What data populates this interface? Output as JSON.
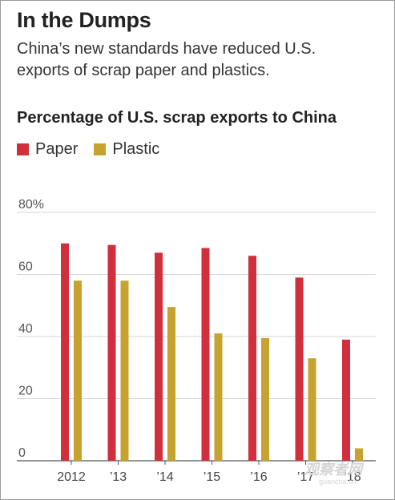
{
  "header": {
    "title": "In the Dumps",
    "subtitle": "China’s new standards have reduced U.S. exports of scrap paper and plastics."
  },
  "chart_data": {
    "type": "bar",
    "title": "Percentage of U.S. scrap exports to China",
    "categories": [
      "2012",
      "’13",
      "’14",
      "’15",
      "’16",
      "’17",
      "’18"
    ],
    "series": [
      {
        "name": "Paper",
        "color": "#d12f3b",
        "values": [
          70,
          69.5,
          67,
          68.5,
          66,
          59,
          39
        ]
      },
      {
        "name": "Plastic",
        "color": "#c6a32f",
        "values": [
          58,
          58,
          49.5,
          41,
          39.5,
          33,
          4
        ]
      }
    ],
    "yticks": [
      "0",
      "20",
      "40",
      "60",
      "80%"
    ],
    "ytick_values": [
      0,
      20,
      40,
      60,
      80
    ],
    "ylim": [
      0,
      80
    ],
    "xlabel": "",
    "ylabel": "",
    "grid": true,
    "legend_position": "top-left"
  },
  "watermark": {
    "text": "观察者网",
    "sub": "guancha.cn"
  }
}
